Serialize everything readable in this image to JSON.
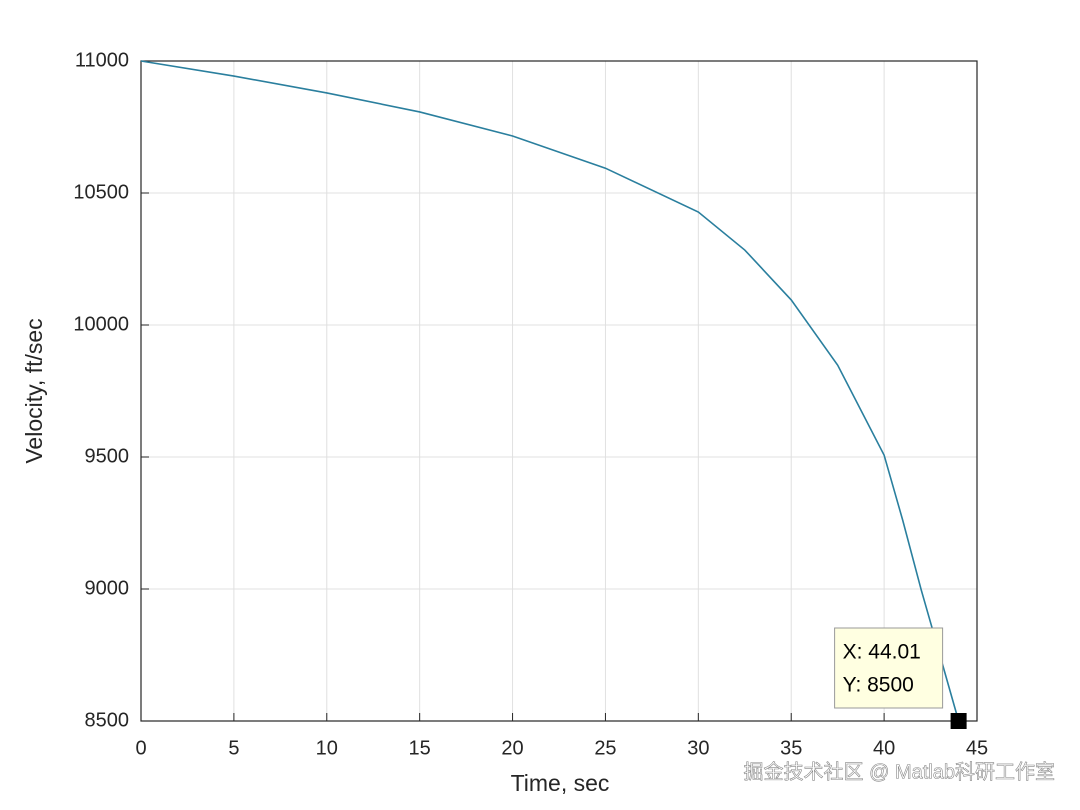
{
  "chart_data": {
    "type": "line",
    "xlabel": "Time, sec",
    "ylabel": "Velocity, ft/sec",
    "x": [
      0,
      5,
      10,
      15,
      20,
      25,
      30,
      32.5,
      35,
      37.5,
      40,
      41,
      42,
      43,
      44.01
    ],
    "values": [
      11000,
      10943,
      10879,
      10807,
      10716,
      10594,
      10428,
      10284,
      10095,
      9848,
      9507,
      9261,
      8996,
      8750,
      8500
    ],
    "color": "#2a7f9e",
    "xlim": [
      0,
      45
    ],
    "ylim": [
      8500,
      11000
    ],
    "xticks": [
      0,
      5,
      10,
      15,
      20,
      25,
      30,
      35,
      40,
      45
    ],
    "yticks": [
      8500,
      9000,
      9500,
      10000,
      10500,
      11000
    ],
    "grid": true,
    "annotations": [
      {
        "x": 44.01,
        "y": 8500,
        "labels": [
          "X: 44.01",
          "Y: 8500"
        ]
      }
    ],
    "watermark": "掘金技术社区 @ Matlab科研工作室"
  }
}
